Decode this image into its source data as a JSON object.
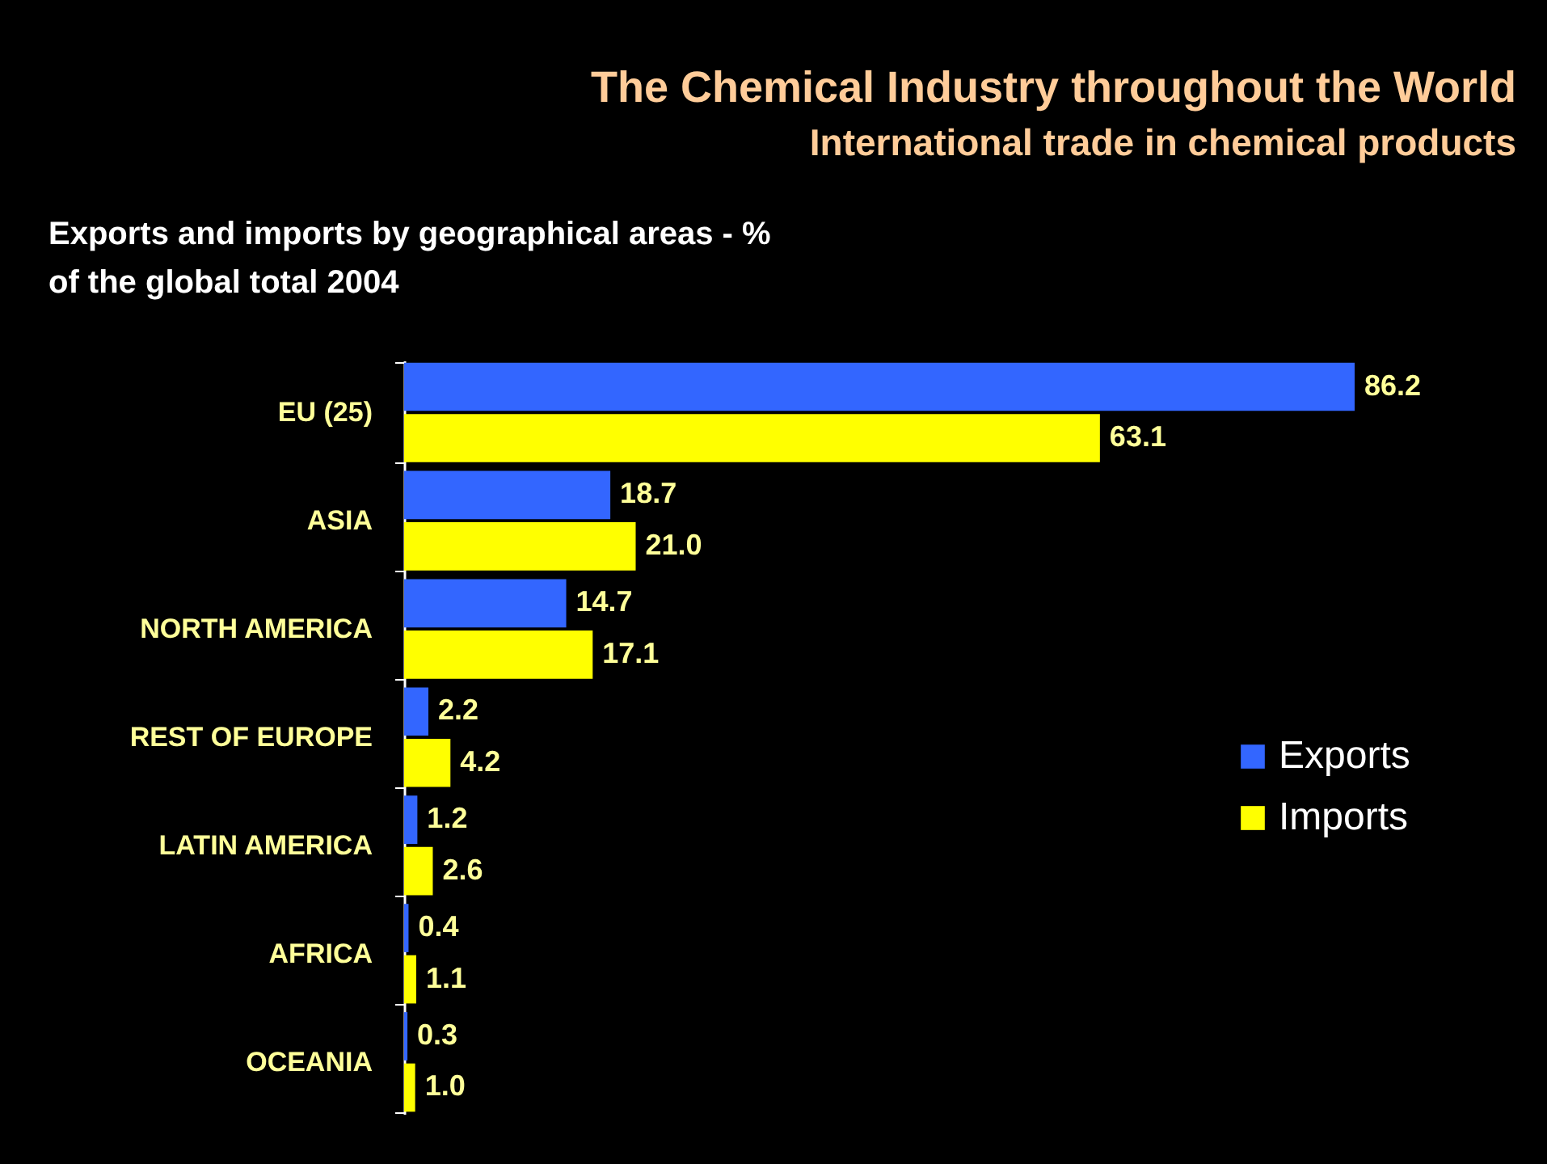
{
  "chart_data": {
    "type": "bar",
    "orientation": "horizontal",
    "title": "The Chemical Industry throughout the World",
    "subtitle": "International trade in chemical products",
    "annotations": [
      "Exports and imports by geographical areas - %",
      "of the global total 2004"
    ],
    "categories": [
      "EU (25)",
      "ASIA",
      "NORTH AMERICA",
      "REST OF EUROPE",
      "LATIN AMERICA",
      "AFRICA",
      "OCEANIA"
    ],
    "series": [
      {
        "name": "Exports",
        "color": "#3366ff",
        "values": [
          86.2,
          18.7,
          14.7,
          2.2,
          1.2,
          0.4,
          0.3
        ],
        "value_labels": [
          "86.2",
          "18.7",
          "14.7",
          "2.2",
          "1.2",
          "0.4",
          "0.3"
        ]
      },
      {
        "name": "Imports",
        "color": "#ffff00",
        "values": [
          63.1,
          21.0,
          17.1,
          4.2,
          2.6,
          1.1,
          1.0
        ],
        "value_labels": [
          "63.1",
          "21.0",
          "17.1",
          "4.2",
          "2.6",
          "1.1",
          "1.0"
        ]
      }
    ],
    "legend": "right"
  }
}
